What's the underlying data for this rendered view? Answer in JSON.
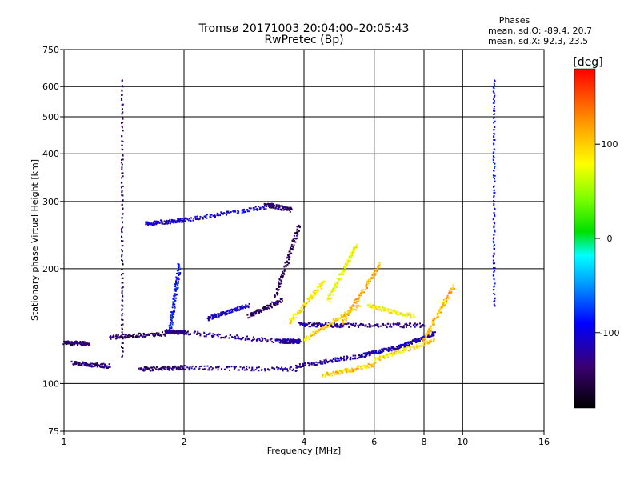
{
  "chart_data": {
    "type": "scatter",
    "title": "Tromsø 20171003 20:04:00–20:05:43",
    "subtitle": "RwPretec (Bp)",
    "xlabel": "Frequency [MHz]",
    "ylabel": "Stationary phase Virtual Height [km]",
    "x_scale": "log",
    "y_scale": "log",
    "xlim": [
      1,
      16
    ],
    "ylim": [
      75,
      750
    ],
    "x_ticks": [
      "1",
      "2",
      "4",
      "6",
      "8",
      "10",
      "16"
    ],
    "y_ticks": [
      "75",
      "100",
      "200",
      "300",
      "400",
      "500",
      "600",
      "750"
    ],
    "grid": true,
    "phases_box": {
      "title": "Phases",
      "line_o": "mean, sd,O: -89.4, 20.7",
      "line_x": "mean, sd,X:  92.3, 23.5"
    },
    "colorbar": {
      "label": "[deg]",
      "range": [
        -180,
        180
      ],
      "ticks": [
        "100",
        "0",
        "-100"
      ],
      "tick_values": [
        100,
        0,
        -100
      ]
    },
    "color_encoding": "phase",
    "series": [
      {
        "traces": [
          {
            "f": [
              1.0,
              1.15
            ],
            "h": [
              128,
              127
            ],
            "phase": -140
          },
          {
            "f": [
              1.05,
              1.3
            ],
            "h": [
              113,
              111
            ],
            "phase": -135
          },
          {
            "f": [
              1.3,
              1.8
            ],
            "h": [
              132,
              135
            ],
            "phase": -145
          },
          {
            "f": [
              1.8,
              2.0
            ],
            "h": [
              137,
              136
            ],
            "phase": -130
          },
          {
            "f": [
              2.0,
              3.5
            ],
            "h": [
              136,
              129
            ],
            "phase": -125
          },
          {
            "f": [
              3.5,
              3.9
            ],
            "h": [
              129,
              129
            ],
            "phase": -120
          },
          {
            "f": [
              1.55,
              2.0
            ],
            "h": [
              109,
              110
            ],
            "phase": -140
          },
          {
            "f": [
              2.0,
              3.8
            ],
            "h": [
              110,
              109
            ],
            "phase": -125
          },
          {
            "f": [
              3.8,
              5.5
            ],
            "h": [
              111,
              118
            ],
            "phase": -120
          },
          {
            "f": [
              5.5,
              7.0
            ],
            "h": [
              118,
              125
            ],
            "phase": -110
          },
          {
            "f": [
              7.0,
              8.5
            ],
            "h": [
              125,
              135
            ],
            "phase": -115
          },
          {
            "f": [
              3.9,
              5.0
            ],
            "h": [
              143,
              142
            ],
            "phase": -125
          },
          {
            "f": [
              5.0,
              8.0
            ],
            "h": [
              142,
              142
            ],
            "phase": -130
          },
          {
            "f": [
              1.85,
              1.95
            ],
            "h": [
              140,
              205
            ],
            "phase": -90
          },
          {
            "f": [
              2.3,
              2.9
            ],
            "h": [
              148,
              160
            ],
            "phase": -110
          },
          {
            "f": [
              2.9,
              3.5
            ],
            "h": [
              150,
              165
            ],
            "phase": -145
          },
          {
            "f": [
              3.4,
              3.9
            ],
            "h": [
              170,
              260
            ],
            "phase": -150
          },
          {
            "f": [
              1.6,
              2.0
            ],
            "h": [
              262,
              268
            ],
            "phase": -110
          },
          {
            "f": [
              2.0,
              3.2
            ],
            "h": [
              268,
              290
            ],
            "phase": -105
          },
          {
            "f": [
              3.2,
              3.7
            ],
            "h": [
              295,
              285
            ],
            "phase": -140
          },
          {
            "f": [
              1.4,
              1.4
            ],
            "h": [
              118,
              620
            ],
            "phase": -150
          },
          {
            "f": [
              12.0,
              12.0
            ],
            "h": [
              160,
              620
            ],
            "phase": -95
          }
        ]
      },
      {
        "traces": [
          {
            "f": [
              3.7,
              4.5
            ],
            "h": [
              145,
              185
            ],
            "phase": 90
          },
          {
            "f": [
              4.0,
              5.5
            ],
            "h": [
              130,
              160
            ],
            "phase": 95
          },
          {
            "f": [
              5.0,
              6.2
            ],
            "h": [
              145,
              205
            ],
            "phase": 110
          },
          {
            "f": [
              4.6,
              5.4
            ],
            "h": [
              165,
              230
            ],
            "phase": 75
          },
          {
            "f": [
              4.5,
              6.0
            ],
            "h": [
              105,
              112
            ],
            "phase": 100
          },
          {
            "f": [
              6.0,
              8.5
            ],
            "h": [
              115,
              130
            ],
            "phase": 95
          },
          {
            "f": [
              5.8,
              7.5
            ],
            "h": [
              160,
              150
            ],
            "phase": 80
          },
          {
            "f": [
              8.0,
              9.5
            ],
            "h": [
              130,
              180
            ],
            "phase": 110
          }
        ]
      }
    ]
  }
}
